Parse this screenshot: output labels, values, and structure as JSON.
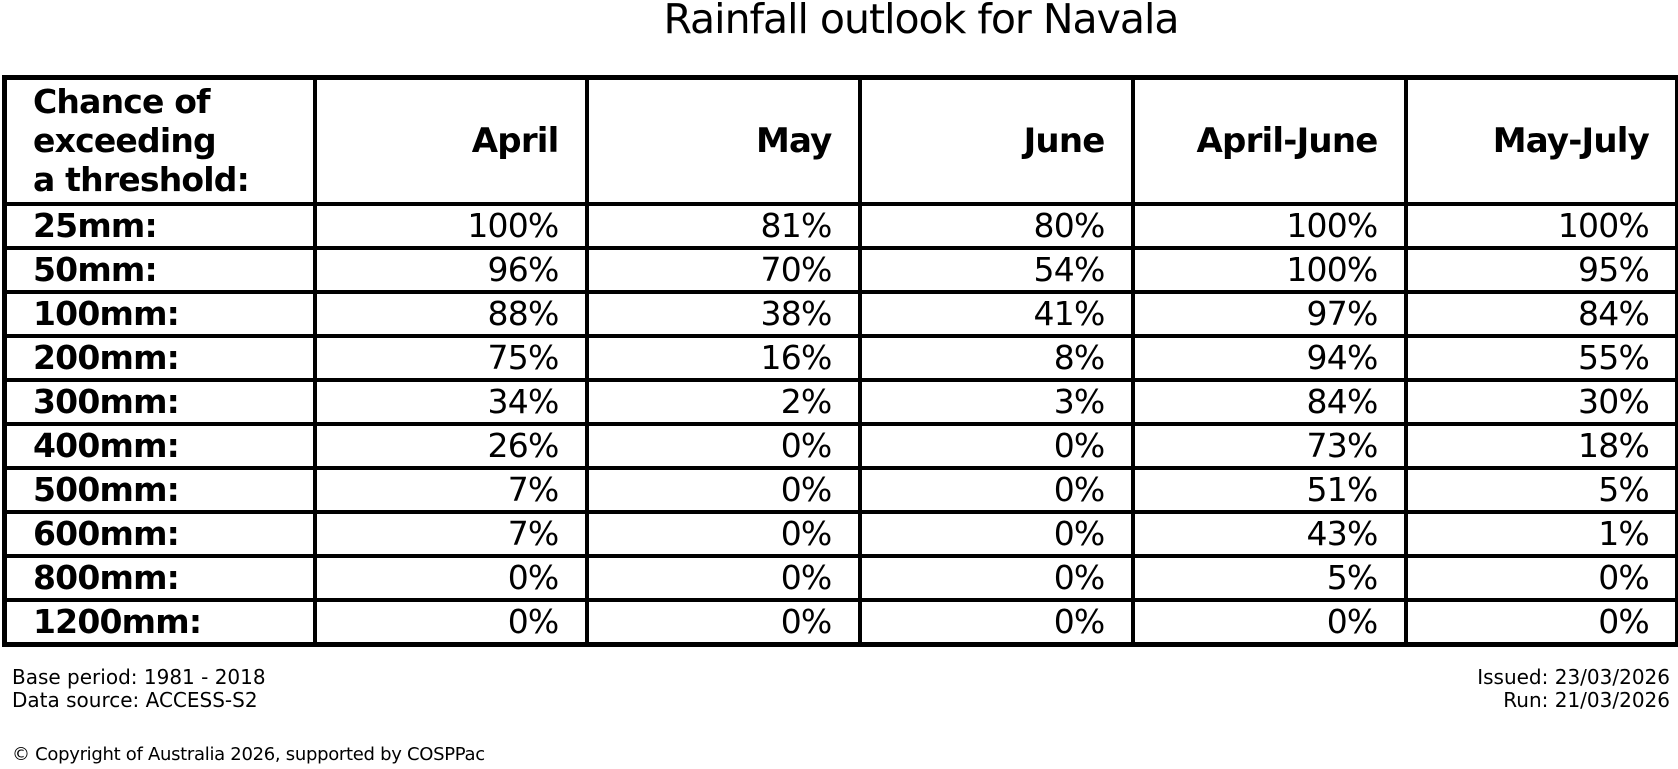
{
  "title": "Rainfall outlook for Navala",
  "colors": {
    "background": "#ffffff",
    "text": "#000000",
    "border": "#000000"
  },
  "table": {
    "corner_label": "Chance of\nexceeding\na threshold:"
  },
  "chart_data": {
    "type": "table",
    "title": "Rainfall outlook for Navala",
    "row_label_header": "Chance of exceeding a threshold:",
    "columns": [
      "April",
      "May",
      "June",
      "April-June",
      "May-July"
    ],
    "rows": [
      "25mm",
      "50mm",
      "100mm",
      "200mm",
      "300mm",
      "400mm",
      "500mm",
      "600mm",
      "800mm",
      "1200mm"
    ],
    "values_percent": [
      [
        100,
        81,
        80,
        100,
        100
      ],
      [
        96,
        70,
        54,
        100,
        95
      ],
      [
        88,
        38,
        41,
        97,
        84
      ],
      [
        75,
        16,
        8,
        94,
        55
      ],
      [
        34,
        2,
        3,
        84,
        30
      ],
      [
        26,
        0,
        0,
        73,
        18
      ],
      [
        7,
        0,
        0,
        51,
        5
      ],
      [
        7,
        0,
        0,
        43,
        1
      ],
      [
        0,
        0,
        0,
        5,
        0
      ],
      [
        0,
        0,
        0,
        0,
        0
      ]
    ],
    "value_unit": "%",
    "row_label_unit_suffix": ":",
    "legend_position": "none",
    "grid": "full-borders"
  },
  "footer": {
    "base_period": "Base period: 1981 - 2018",
    "data_source": "Data source: ACCESS-S2",
    "issued": "Issued: 23/03/2026",
    "run": "Run: 21/03/2026",
    "copyright": "© Copyright of Australia 2026, supported by COSPPac"
  }
}
